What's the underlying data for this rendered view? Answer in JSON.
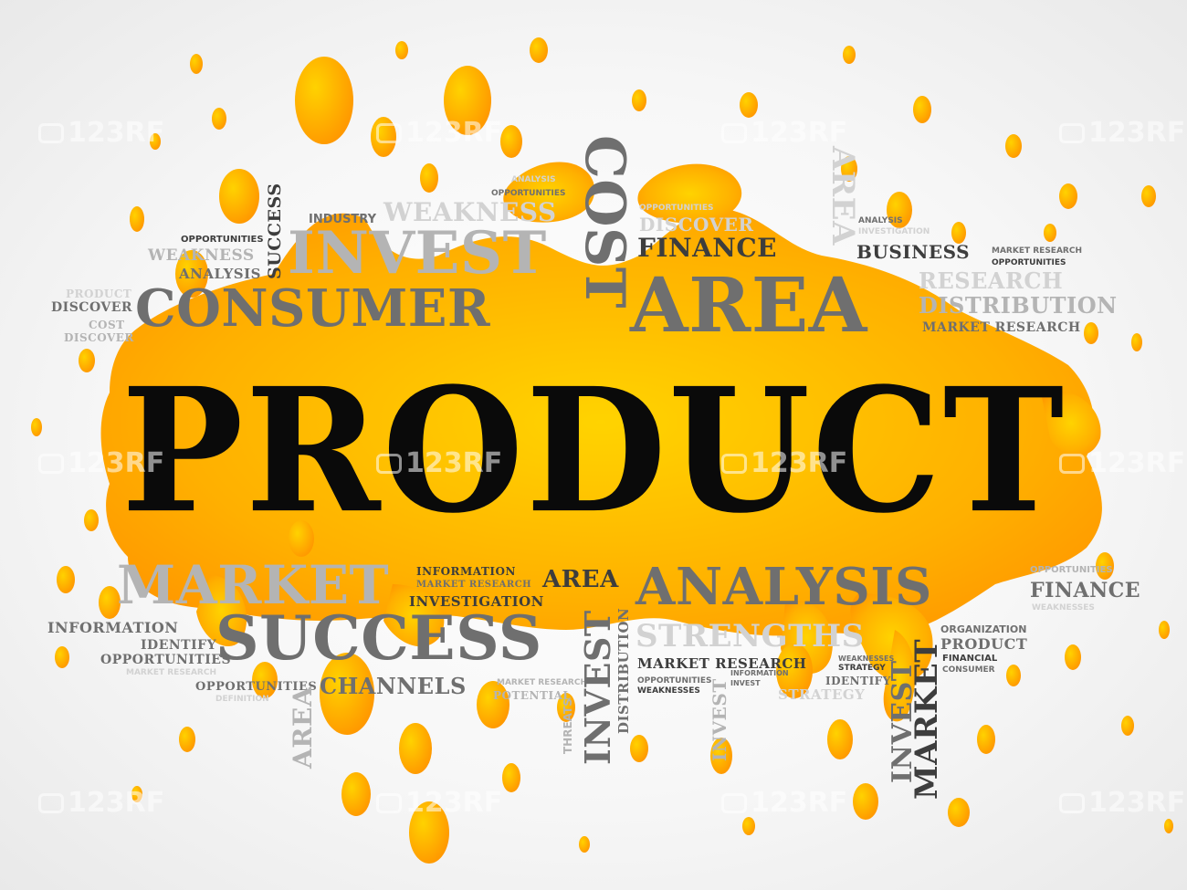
{
  "hero": "PRODUCT",
  "watermark": "123RF",
  "colors": {
    "splash_light": "#ffd300",
    "splash_dark": "#ff9a00",
    "hero": "#0a0a0a",
    "dark_word": "#3d3d3d",
    "mid_word": "#6f6f6f",
    "light_word": "#b4b4b4"
  },
  "words": {
    "success_v": "SUCCESS",
    "industry": "INDUSTRY",
    "weakness_top": "WEAKNESS",
    "analysis_top": "ANALYSIS",
    "opportunities_top": "OPPORTUNITIES",
    "opportunities_left": "OPPORTUNITIES",
    "weakness_left": "WEAKNESS",
    "analysis_left": "ANALYSIS",
    "invest_top": "INVEST",
    "product_left": "PRODUCT",
    "discover_left": "DISCOVER",
    "cost_left": "COST",
    "discover_left2": "DISCOVER",
    "consumer": "CONSUMER",
    "cost_v": "COST",
    "opportunities_mid": "OPPORTUNITIES",
    "discover_mid": "DISCOVER",
    "finance_top": "FINANCE",
    "area_top": "AREA",
    "area_v": "AREA",
    "analysis_right": "ANALYSIS",
    "investigation_right": "INVESTIGATION",
    "business": "BUSINESS",
    "market_research_r1": "MARKET RESEARCH",
    "opportunities_r1": "OPPORTUNITIES",
    "research": "RESEARCH",
    "distribution": "DISTRIBUTION",
    "market_research_r2": "MARKET RESEARCH",
    "market_bottom": "MARKET",
    "information_mid": "INFORMATION",
    "market_research_mid": "MARKET RESEARCH",
    "area_mid": "AREA",
    "investigation_mid": "INVESTIGATION",
    "analysis_big": "ANALYSIS",
    "opportunities_br": "OPPORTUNITIES",
    "finance_br": "FINANCE",
    "weaknesses_br": "WEAKNESSES",
    "information_left": "INFORMATION",
    "identify_left": "IDENTIFY",
    "opportunities_bl": "OPPORTUNITIES",
    "market_research_bl": "MARKET RESEARCH",
    "success_big": "SUCCESS",
    "strengths": "STRENGTHS",
    "organization": "ORGANIZATION",
    "product_br": "PRODUCT",
    "financial": "FINANCIAL",
    "consumer_br": "CONSUMER",
    "opportunities_bl2": "OPPORTUNITIES",
    "definition": "DEFINITION",
    "channels": "CHANNELS",
    "market_research_b": "MARKET RESEARCH",
    "potential": "POTENTIAL",
    "market_research_b2": "MARKET RESEARCH",
    "weaknesses_b": "WEAKNESSES",
    "strategy_b": "STRATEGY",
    "identify_b": "IDENTIFY",
    "strategy_b2": "STRATEGY",
    "information_b": "INFORMATION",
    "invest_b": "INVEST",
    "opportunities_b3": "OPPORTUNITIES",
    "weaknesses_b3": "WEAKNESSES",
    "area_v2": "AREA",
    "threats_v": "THREATS",
    "invest_v": "INVEST",
    "distribution_v": "DISTRIBUTION",
    "invest_v2": "INVEST",
    "invest_v3": "INVEST",
    "market_v": "MARKET"
  }
}
